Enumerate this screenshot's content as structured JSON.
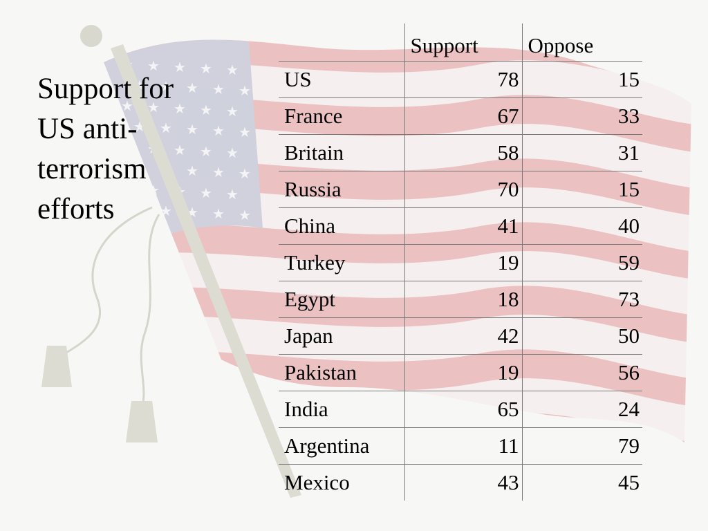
{
  "slide": {
    "title": "Support for US anti-terrorism efforts"
  },
  "background": {
    "image": "faded waving US flag on pole with tassels",
    "colors": {
      "stripe": "#e9b8b8",
      "canton": "#c9cbd9",
      "star": "#f4f4f6",
      "pole": "#dcdcd2"
    }
  },
  "table": {
    "headers": [
      "",
      "Support",
      "Oppose"
    ],
    "rows": [
      {
        "country": "US",
        "support": "78",
        "oppose": "15"
      },
      {
        "country": "France",
        "support": "67",
        "oppose": "33"
      },
      {
        "country": "Britain",
        "support": "58",
        "oppose": "31"
      },
      {
        "country": "Russia",
        "support": "70",
        "oppose": "15"
      },
      {
        "country": "China",
        "support": "41",
        "oppose": "40"
      },
      {
        "country": "Turkey",
        "support": "19",
        "oppose": "59"
      },
      {
        "country": "Egypt",
        "support": "18",
        "oppose": "73"
      },
      {
        "country": "Japan",
        "support": "42",
        "oppose": "50"
      },
      {
        "country": "Pakistan",
        "support": "19",
        "oppose": "56"
      },
      {
        "country": "India",
        "support": "65",
        "oppose": "24"
      },
      {
        "country": "Argentina",
        "support": "11",
        "oppose": "79"
      },
      {
        "country": "Mexico",
        "support": "43",
        "oppose": "45"
      }
    ]
  }
}
